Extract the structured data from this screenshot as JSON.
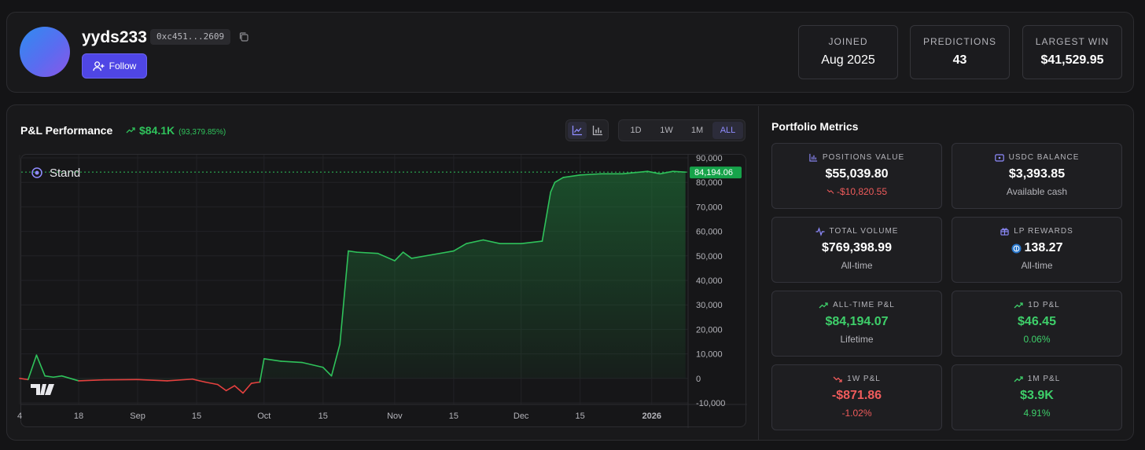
{
  "profile": {
    "username": "yyds233",
    "address": "0xc451...2609",
    "follow_label": "Follow",
    "stats": [
      {
        "label": "JOINED",
        "value": "Aug 2025"
      },
      {
        "label": "PREDICTIONS",
        "value": "43"
      },
      {
        "label": "LARGEST WIN",
        "value": "$41,529.95"
      }
    ]
  },
  "pl": {
    "title": "P&L Performance",
    "value": "$84.1K",
    "percent": "(93,379.85%)",
    "ranges": [
      "1D",
      "1W",
      "1M",
      "ALL"
    ],
    "active_range": "ALL"
  },
  "chart_data": {
    "type": "area",
    "title": "",
    "series_label": "Stand",
    "current_value_label": "84,194.06",
    "yticks": [
      "90,000",
      "80,000",
      "70,000",
      "60,000",
      "50,000",
      "40,000",
      "30,000",
      "20,000",
      "10,000",
      "0",
      "-10,000"
    ],
    "ylim": [
      -10000,
      90000
    ],
    "xticks": [
      "4",
      "18",
      "Sep",
      "15",
      "Oct",
      "15",
      "Nov",
      "15",
      "Dec",
      "15",
      "2026"
    ],
    "x": [
      "Aug 4",
      "Aug 6",
      "Aug 8",
      "Aug 10",
      "Aug 12",
      "Aug 14",
      "Aug 18",
      "Aug 24",
      "Sep 1",
      "Sep 8",
      "Sep 14",
      "Sep 17",
      "Sep 20",
      "Sep 22",
      "Sep 24",
      "Sep 26",
      "Sep 28",
      "Sep 30",
      "Oct 1",
      "Oct 5",
      "Oct 10",
      "Oct 15",
      "Oct 17",
      "Oct 19",
      "Oct 21",
      "Oct 23",
      "Oct 28",
      "Nov 1",
      "Nov 3",
      "Nov 5",
      "Nov 10",
      "Nov 15",
      "Nov 18",
      "Nov 22",
      "Nov 26",
      "Dec 1",
      "Dec 6",
      "Dec 8",
      "Dec 9",
      "Dec 11",
      "Dec 15",
      "Dec 20",
      "Dec 25",
      "Dec 31",
      "Jan 3",
      "Jan 6",
      "Jan 9"
    ],
    "values": [
      0,
      -500,
      9500,
      1000,
      500,
      1000,
      -1000,
      -600,
      -500,
      -1000,
      -300,
      -1500,
      -2500,
      -5000,
      -3000,
      -6000,
      -2000,
      -1500,
      8000,
      7000,
      6500,
      4500,
      1000,
      14000,
      52000,
      51500,
      51000,
      48000,
      51500,
      49000,
      50500,
      52000,
      55000,
      56500,
      55000,
      55000,
      56000,
      76000,
      80000,
      82000,
      83000,
      83500,
      83500,
      84500,
      83500,
      84500,
      84194
    ]
  },
  "metrics": {
    "title": "Portfolio Metrics",
    "cards": [
      {
        "label": "POSITIONS VALUE",
        "value": "$55,039.80",
        "sub": "-$10,820.55",
        "icon": "bar-chart-icon"
      },
      {
        "label": "USDC BALANCE",
        "value": "$3,393.85",
        "sub": "Available cash",
        "icon": "wallet-icon"
      },
      {
        "label": "TOTAL VOLUME",
        "value": "$769,398.99",
        "sub": "All-time",
        "icon": "activity-icon"
      },
      {
        "label": "LP REWARDS",
        "value": "138.27",
        "sub": "All-time",
        "icon": "gift-icon"
      },
      {
        "label": "ALL-TIME P&L",
        "value": "$84,194.07",
        "sub": "Lifetime",
        "icon": "trend-up-icon"
      },
      {
        "label": "1D P&L",
        "value": "$46.45",
        "sub": "0.06%",
        "icon": "trend-up-icon"
      },
      {
        "label": "1W P&L",
        "value": "-$871.86",
        "sub": "-1.02%",
        "icon": "trend-down-icon"
      },
      {
        "label": "1M P&L",
        "value": "$3.9K",
        "sub": "4.91%",
        "icon": "trend-up-icon"
      }
    ]
  },
  "colors": {
    "accent": "#4f46e5",
    "positive": "#3ecf6a",
    "negative": "#ef5b5b"
  }
}
